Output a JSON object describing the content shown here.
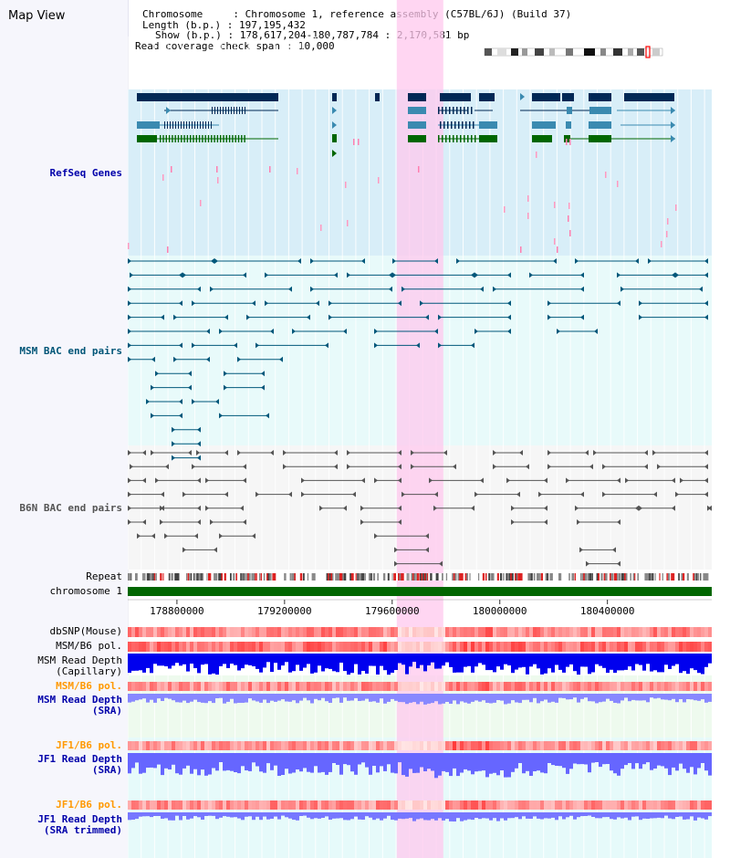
{
  "header": {
    "title": "Map View",
    "chromosome_key": "Chromosome    ",
    "chromosome_value": "Chromosome 1, reference assembly (C57BL/6J) (Build 37)",
    "length_key": "Length (b.p.)",
    "length_value": "197,195,432",
    "show_key": "Show (b.p.)",
    "show_value": "178,617,204-180,787,784 : 2,170,581 bp",
    "coverage_key": "Read coverage check span",
    "coverage_value": "10,000"
  },
  "tracks": {
    "refseq": "RefSeq Genes",
    "msm_bac": "MSM BAC end pairs",
    "b6n_bac": "B6N BAC end pairs",
    "repeat": "Repeat",
    "chromosome": "chromosome 1",
    "dbsnp": "dbSNP(Mouse)",
    "msm_b6_pol_1": "MSM/B6 pol.",
    "msm_read_depth_cap_1": "MSM Read Depth",
    "msm_read_depth_cap_2": "(Capillary)",
    "msm_b6_pol_2": "MSM/B6 pol.",
    "msm_read_depth_sra_1": "MSM Read Depth",
    "msm_read_depth_sra_2": "(SRA)",
    "jf1_b6_pol_1": "JF1/B6 pol.",
    "jf1_read_depth_sra_1": "JF1 Read Depth",
    "jf1_read_depth_sra_2": "(SRA)",
    "jf1_b6_pol_2": "JF1/B6 pol.",
    "jf1_read_depth_trim_1": "JF1 Read Depth",
    "jf1_read_depth_trim_2": "(SRA trimmed)"
  },
  "axis": {
    "ticks": [
      "178800000",
      "179200000",
      "179600000",
      "180000000",
      "180400000"
    ],
    "tick_values": [
      178800000,
      179200000,
      179600000,
      180000000,
      180400000
    ],
    "range": [
      178617204,
      180787784
    ],
    "highlight_range": [
      179617000,
      179790000
    ]
  },
  "colors": {
    "refseq_label": "#0000aa",
    "msm_label": "#005577",
    "b6n_label": "#555555",
    "orange_label": "#ff9900",
    "blue_label": "#0000aa",
    "gene_dark": "#002855",
    "gene_mid": "#3a8ab0",
    "gene_green": "#006600",
    "bac_teal": "#00577a",
    "bac_gray": "#555555",
    "chrom_green": "#006600",
    "highlight": "#ffc8ee",
    "depth_blue": "#0000ee",
    "depth_light": "#7777ff"
  }
}
